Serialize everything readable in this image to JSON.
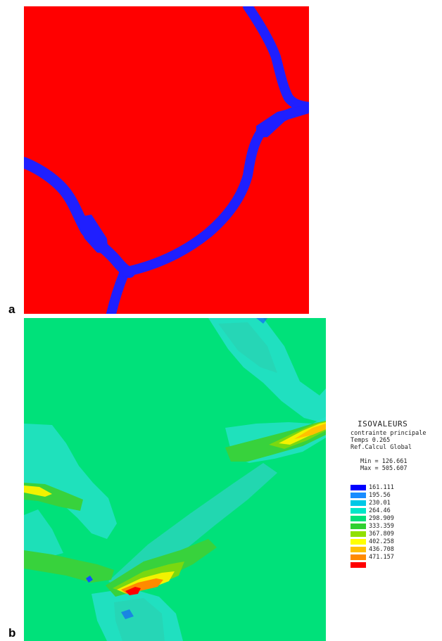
{
  "labels": {
    "a": "a",
    "b": "b"
  },
  "panel_a": {
    "colors": {
      "background": "#ff0000",
      "boundary": "#1f1fff"
    }
  },
  "panel_b": {
    "colors": {
      "background": "#00e17a",
      "light": "#24e0c8",
      "mid": "#26d6b6",
      "green": "#38d23c",
      "lime": "#7ad810",
      "yellow": "#f2f200",
      "gold": "#ffc000",
      "orange": "#ff8a00",
      "red": "#ff0000",
      "blue": "#1050ff",
      "dark_blue": "#0000ff"
    }
  },
  "legend": {
    "title": "ISOVALEURS",
    "lines": [
      "contrainte principale",
      "Temps 0.265",
      "Ref.Calcul Global"
    ],
    "min": "Min = 126.661",
    "max": "Max = 505.607",
    "scale": [
      {
        "value": "161.111",
        "color": "#0000ff"
      },
      {
        "value": "195.56",
        "color": "#1a8cff"
      },
      {
        "value": "230.01",
        "color": "#00c8e6"
      },
      {
        "value": "264.46",
        "color": "#00e6c8"
      },
      {
        "value": "298.909",
        "color": "#00e17a"
      },
      {
        "value": "333.359",
        "color": "#30d030"
      },
      {
        "value": "367.809",
        "color": "#90e000"
      },
      {
        "value": "402.258",
        "color": "#ffff00"
      },
      {
        "value": "436.708",
        "color": "#ffc000"
      },
      {
        "value": "471.157",
        "color": "#ff8a00"
      },
      {
        "value": "",
        "color": "#ff0000"
      }
    ]
  }
}
